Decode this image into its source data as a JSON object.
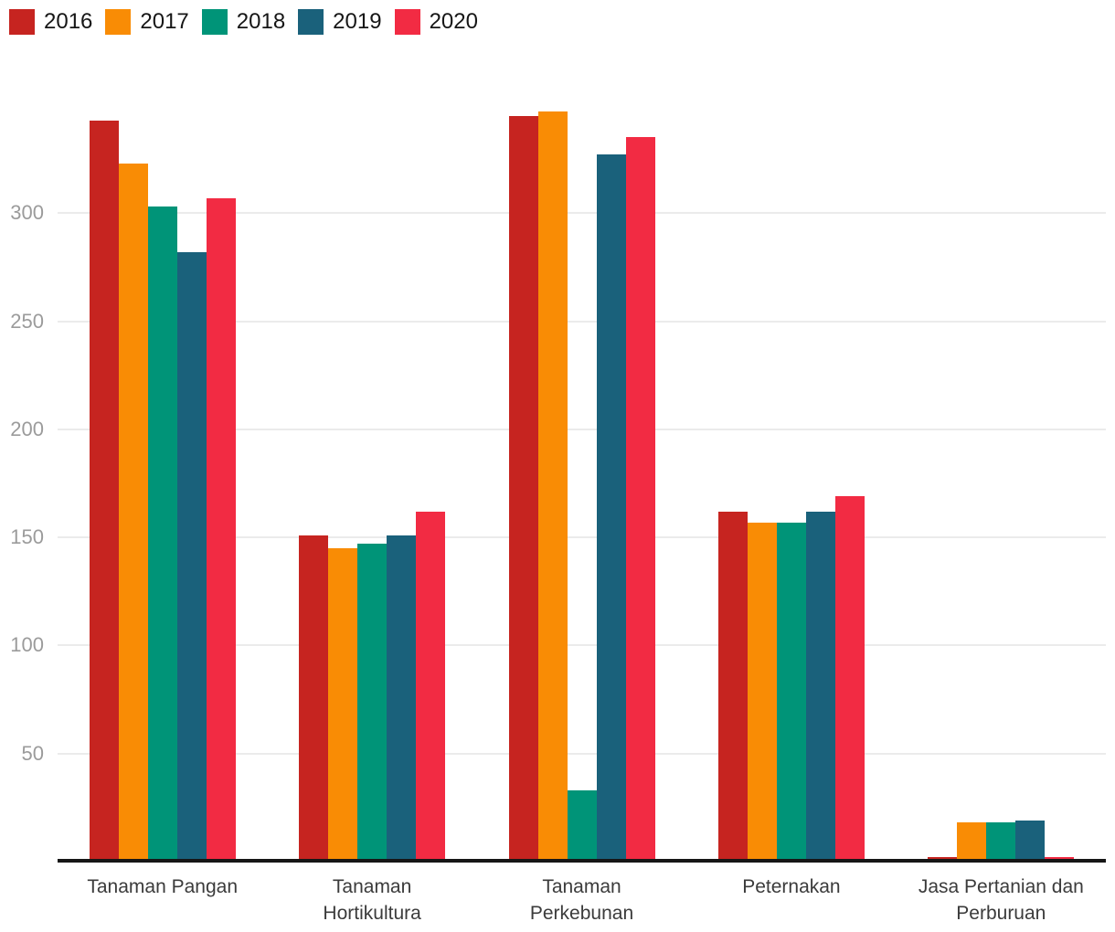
{
  "chart_data": {
    "type": "bar",
    "title": "",
    "xlabel": "",
    "ylabel": "",
    "categories": [
      "Tanaman Pangan",
      "Tanaman Hortikultura",
      "Tanaman Perkebunan",
      "Peternakan",
      "Jasa Pertanian dan Perburuan"
    ],
    "series": [
      {
        "name": "2016",
        "color": "#c62420",
        "values": [
          343,
          151,
          345,
          162,
          2
        ]
      },
      {
        "name": "2017",
        "color": "#f98c05",
        "values": [
          323,
          145,
          347,
          157,
          18
        ]
      },
      {
        "name": "2018",
        "color": "#009478",
        "values": [
          303,
          147,
          33,
          157,
          18
        ]
      },
      {
        "name": "2019",
        "color": "#1a617b",
        "values": [
          282,
          151,
          327,
          162,
          19
        ]
      },
      {
        "name": "2020",
        "color": "#f22b43",
        "values": [
          307,
          162,
          335,
          169,
          2
        ]
      }
    ],
    "ylim": [
      0,
      358
    ],
    "yticks": [
      50,
      100,
      150,
      200,
      250,
      300
    ],
    "grid": true,
    "legend_position": "top-left"
  },
  "x_axis": {
    "label_lines": [
      [
        "Tanaman Pangan"
      ],
      [
        "Tanaman",
        "Hortikultura"
      ],
      [
        "Tanaman",
        "Perkebunan"
      ],
      [
        "Peternakan"
      ],
      [
        "Jasa Pertanian dan",
        "Perburuan"
      ]
    ]
  },
  "colors": {
    "background": "#ffffff",
    "gridline": "#ebebeb",
    "axis_line": "#161616",
    "y_tick_label": "#9b9b9b",
    "category_label": "#3b3b3b",
    "legend_label": "#161616"
  }
}
